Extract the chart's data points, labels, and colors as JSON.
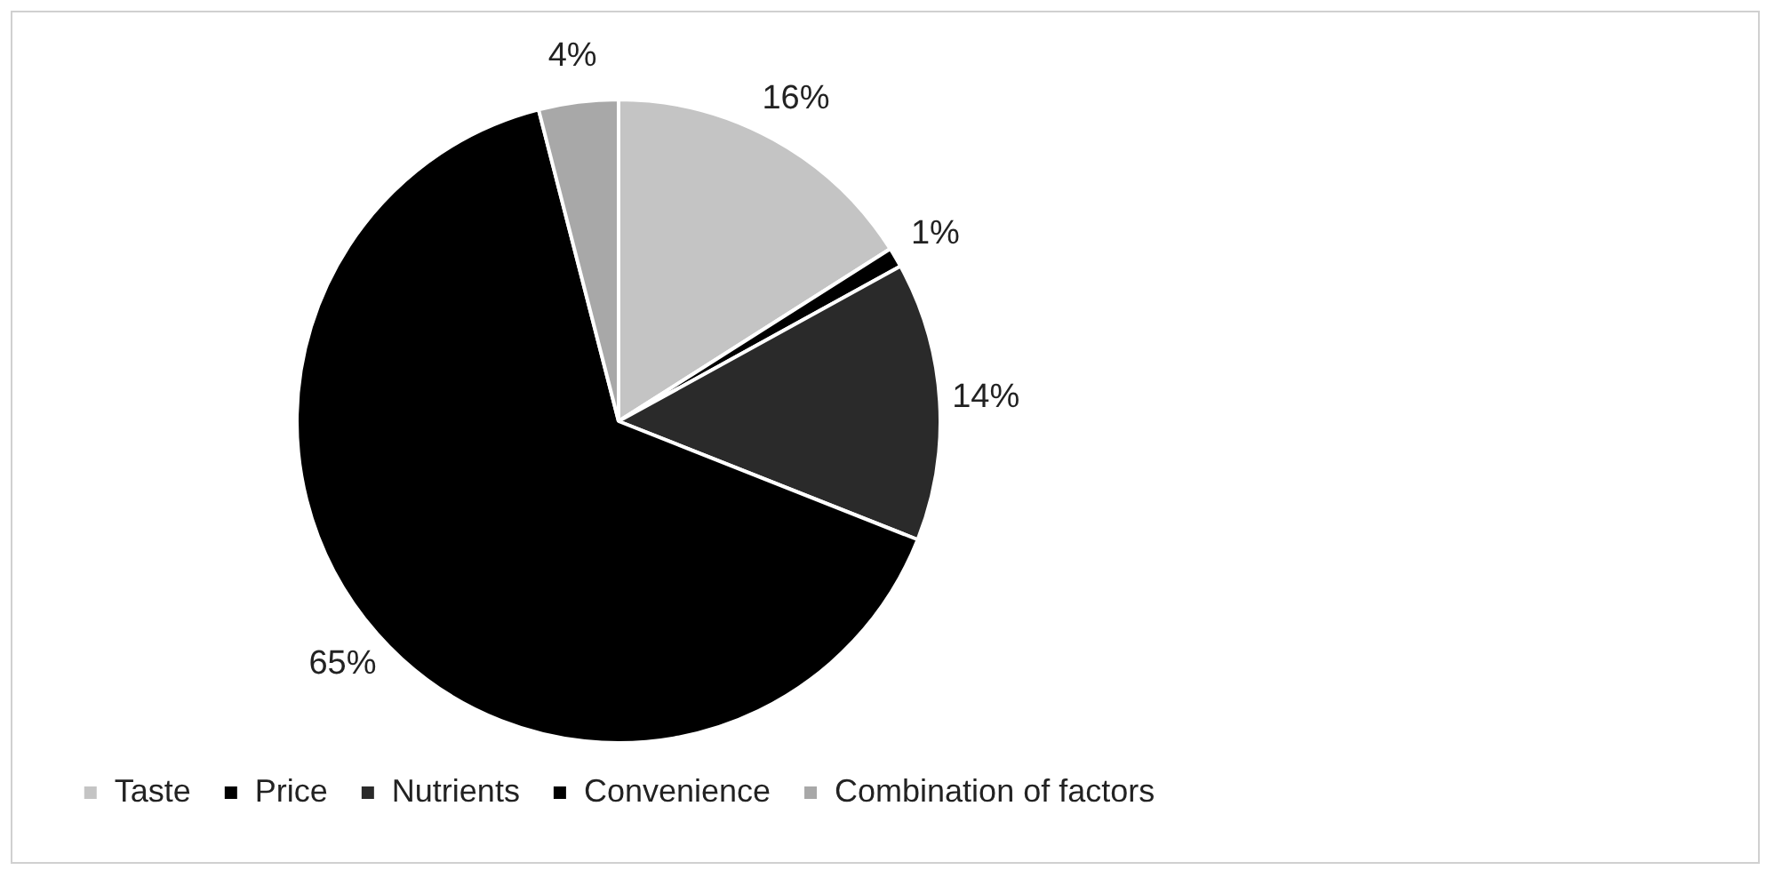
{
  "chart_data": {
    "type": "pie",
    "categories": [
      "Taste",
      "Price",
      "Nutrients",
      "Convenience",
      "Combination of factors"
    ],
    "values": [
      16,
      1,
      14,
      65,
      4
    ],
    "colors": [
      "#c4c4c4",
      "#000000",
      "#2a2a2a",
      "#000000",
      "#a8a8a8"
    ],
    "value_labels": [
      "16%",
      "1%",
      "14%",
      "65%",
      "4%"
    ],
    "legend": "bottom"
  }
}
